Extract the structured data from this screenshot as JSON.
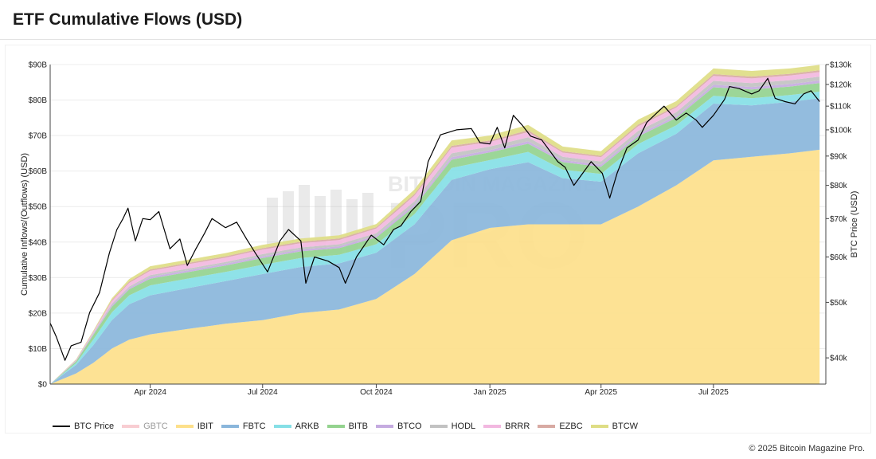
{
  "header": {
    "title": "ETF Cumulative Flows (USD)"
  },
  "footer": {
    "copyright": "© 2025 Bitcoin Magazine Pro."
  },
  "watermark": {
    "text_top": "BITCOIN MAGAZINE",
    "text_main": "PRO"
  },
  "legend": [
    {
      "id": "btc",
      "label": "BTC Price",
      "color": "#000000",
      "muted": false,
      "kind": "line"
    },
    {
      "id": "gbtc",
      "label": "GBTC",
      "color": "#f6c1c7",
      "muted": true,
      "kind": "area"
    },
    {
      "id": "ibit",
      "label": "IBIT",
      "color": "#fde08b",
      "muted": false,
      "kind": "area"
    },
    {
      "id": "fbtc",
      "label": "FBTC",
      "color": "#8ab6db",
      "muted": false,
      "kind": "area"
    },
    {
      "id": "arkb",
      "label": "ARKB",
      "color": "#86dfe6",
      "muted": false,
      "kind": "area"
    },
    {
      "id": "bitb",
      "label": "BITB",
      "color": "#94d38f",
      "muted": false,
      "kind": "area"
    },
    {
      "id": "btco",
      "label": "BTCO",
      "color": "#c5abe0",
      "muted": false,
      "kind": "area"
    },
    {
      "id": "hodl",
      "label": "HODL",
      "color": "#c2c2c2",
      "muted": false,
      "kind": "area"
    },
    {
      "id": "brrr",
      "label": "BRRR",
      "color": "#f2b8e0",
      "muted": false,
      "kind": "area"
    },
    {
      "id": "ezbc",
      "label": "EZBC",
      "color": "#d8aaa3",
      "muted": false,
      "kind": "area"
    },
    {
      "id": "btcw",
      "label": "BTCW",
      "color": "#dedd85",
      "muted": false,
      "kind": "area"
    }
  ],
  "chart_data": {
    "type": "area",
    "title": "ETF Cumulative Flows (USD)",
    "ylabel": "Cumulative Inflows/(Outflows) (USD)",
    "y2label": "BTC Price (USD)",
    "x_ticks": [
      "Apr 2024",
      "Jul 2024",
      "Oct 2024",
      "Jan 2025",
      "Apr 2025",
      "Jul 2025"
    ],
    "x_tick_dates": [
      "2024-04-01",
      "2024-07-01",
      "2024-10-01",
      "2025-01-01",
      "2025-04-01",
      "2025-07-01"
    ],
    "xlim": [
      "2024-01-11",
      "2025-09-30"
    ],
    "ylim": [
      0,
      90
    ],
    "y_ticks": [
      "$0",
      "$10B",
      "$20B",
      "$30B",
      "$40B",
      "$50B",
      "$60B",
      "$70B",
      "$80B",
      "$90B"
    ],
    "y_tick_values": [
      0,
      10,
      20,
      30,
      40,
      50,
      60,
      70,
      80,
      90
    ],
    "y2_scale": "log",
    "y2lim": [
      36000,
      130000
    ],
    "y2_ticks": [
      "$40k",
      "$50k",
      "$60k",
      "$70k",
      "$80k",
      "$90k",
      "$100k",
      "$110k",
      "$120k",
      "$130k"
    ],
    "y2_tick_values": [
      40000,
      50000,
      60000,
      70000,
      80000,
      90000,
      100000,
      110000,
      120000,
      130000
    ],
    "grid": true,
    "legend_position": "bottom",
    "stack_order": [
      "ibit",
      "fbtc",
      "arkb",
      "bitb",
      "btco",
      "hodl",
      "brrr",
      "ezbc",
      "btcw"
    ],
    "x": [
      "2024-01-11",
      "2024-02-01",
      "2024-02-15",
      "2024-03-01",
      "2024-03-15",
      "2024-04-01",
      "2024-05-01",
      "2024-06-01",
      "2024-07-01",
      "2024-08-01",
      "2024-09-01",
      "2024-10-01",
      "2024-11-01",
      "2024-12-01",
      "2025-01-01",
      "2025-02-01",
      "2025-03-01",
      "2025-04-01",
      "2025-05-01",
      "2025-06-01",
      "2025-07-01",
      "2025-08-01",
      "2025-09-01",
      "2025-09-25"
    ],
    "cumulative_total_B": [
      0,
      7,
      16,
      25,
      30,
      33,
      34,
      35.5,
      37,
      39,
      40,
      43,
      52,
      67,
      68,
      71,
      65,
      64,
      74,
      79,
      88,
      88,
      89,
      90
    ],
    "series": [
      {
        "name": "IBIT",
        "values": [
          0,
          3,
          6,
          10,
          12.5,
          14,
          15.5,
          17,
          18,
          20,
          21,
          24,
          31,
          40.5,
          44,
          45,
          45,
          45,
          50,
          56,
          63,
          64,
          65,
          66
        ]
      },
      {
        "name": "FBTC",
        "values": [
          0,
          2.4,
          5,
          8,
          10,
          11,
          11.5,
          12,
          13,
          13,
          13,
          13,
          14,
          17,
          16.5,
          17.5,
          13,
          12,
          15,
          14.5,
          16,
          14.5,
          14.5,
          14.5
        ]
      },
      {
        "name": "ARKB",
        "values": [
          0,
          0.5,
          1.6,
          2.2,
          2.5,
          2.8,
          2.7,
          2.6,
          2.6,
          2.5,
          2.4,
          2.4,
          2.9,
          3.4,
          2.6,
          2.9,
          2.4,
          2.2,
          2.6,
          2.4,
          2.2,
          2.0,
          1.9,
          1.9
        ]
      },
      {
        "name": "BITB",
        "values": [
          0,
          0.5,
          1.3,
          1.6,
          1.7,
          1.9,
          1.8,
          1.8,
          1.9,
          1.9,
          1.9,
          1.9,
          2.1,
          2.3,
          2.2,
          2.3,
          2.1,
          2.0,
          2.1,
          2.1,
          2.4,
          2.5,
          2.4,
          2.4
        ]
      },
      {
        "name": "BTCO",
        "values": [
          0,
          0.2,
          0.3,
          0.4,
          0.4,
          0.5,
          0.5,
          0.5,
          0.5,
          0.5,
          0.5,
          0.5,
          0.6,
          0.7,
          0.6,
          0.7,
          0.6,
          0.6,
          0.6,
          0.6,
          0.7,
          0.7,
          0.7,
          0.7
        ]
      },
      {
        "name": "HODL",
        "values": [
          0,
          0.1,
          0.2,
          0.4,
          0.4,
          0.5,
          0.5,
          0.5,
          0.6,
          0.6,
          0.6,
          0.7,
          0.9,
          1.1,
          1.0,
          1.1,
          0.9,
          0.9,
          1.0,
          1.0,
          1.1,
          1.1,
          1.1,
          1.1
        ]
      },
      {
        "name": "BRRR",
        "values": [
          0,
          0.1,
          0.3,
          0.8,
          1.0,
          1.2,
          1.2,
          1.2,
          1.3,
          1.2,
          1.2,
          1.3,
          1.6,
          1.6,
          1.3,
          1.5,
          1.2,
          1.2,
          1.3,
          1.3,
          1.4,
          1.3,
          1.3,
          1.3
        ]
      },
      {
        "name": "EZBC",
        "values": [
          0,
          0.1,
          0.2,
          0.3,
          0.4,
          0.4,
          0.4,
          0.4,
          0.4,
          0.4,
          0.4,
          0.4,
          0.5,
          0.5,
          0.4,
          0.5,
          0.4,
          0.4,
          0.5,
          0.4,
          0.5,
          0.5,
          0.5,
          0.5
        ]
      },
      {
        "name": "BTCW",
        "values": [
          0,
          0.1,
          0.2,
          0.5,
          0.7,
          0.9,
          0.9,
          0.9,
          0.9,
          0.9,
          0.9,
          0.9,
          1.2,
          1.5,
          1.4,
          1.5,
          1.3,
          1.3,
          1.4,
          1.4,
          1.6,
          1.6,
          1.5,
          1.5
        ]
      },
      {
        "name": "BTC Price",
        "axis": "right",
        "x": [
          "2024-01-11",
          "2024-01-16",
          "2024-01-23",
          "2024-01-28",
          "2024-02-05",
          "2024-02-12",
          "2024-02-20",
          "2024-02-28",
          "2024-03-05",
          "2024-03-10",
          "2024-03-14",
          "2024-03-20",
          "2024-03-26",
          "2024-04-01",
          "2024-04-08",
          "2024-04-17",
          "2024-04-25",
          "2024-05-01",
          "2024-05-08",
          "2024-05-15",
          "2024-05-21",
          "2024-06-01",
          "2024-06-10",
          "2024-06-18",
          "2024-06-25",
          "2024-07-05",
          "2024-07-15",
          "2024-07-22",
          "2024-08-01",
          "2024-08-05",
          "2024-08-12",
          "2024-08-23",
          "2024-09-01",
          "2024-09-06",
          "2024-09-15",
          "2024-09-27",
          "2024-10-07",
          "2024-10-15",
          "2024-10-21",
          "2024-10-29",
          "2024-11-06",
          "2024-11-12",
          "2024-11-22",
          "2024-12-05",
          "2024-12-17",
          "2024-12-24",
          "2025-01-01",
          "2025-01-07",
          "2025-01-13",
          "2025-01-20",
          "2025-01-27",
          "2025-02-03",
          "2025-02-12",
          "2025-02-25",
          "2025-03-03",
          "2025-03-10",
          "2025-03-24",
          "2025-04-02",
          "2025-04-08",
          "2025-04-14",
          "2025-04-22",
          "2025-05-01",
          "2025-05-08",
          "2025-05-22",
          "2025-06-01",
          "2025-06-09",
          "2025-06-17",
          "2025-06-22",
          "2025-07-01",
          "2025-07-10",
          "2025-07-14",
          "2025-07-22",
          "2025-08-01",
          "2025-08-07",
          "2025-08-14",
          "2025-08-20",
          "2025-08-28",
          "2025-09-05",
          "2025-09-12",
          "2025-09-18",
          "2025-09-25"
        ],
        "values": [
          46000,
          43500,
          39600,
          42000,
          42600,
          48000,
          52000,
          61000,
          67000,
          70000,
          73000,
          64000,
          70000,
          69700,
          72000,
          62000,
          64500,
          58000,
          62000,
          66000,
          70000,
          67500,
          69000,
          64500,
          61000,
          56500,
          64000,
          67000,
          64000,
          54000,
          60000,
          59000,
          57500,
          54000,
          60000,
          65500,
          63000,
          67000,
          68000,
          72000,
          75000,
          88000,
          98000,
          100000,
          100500,
          95000,
          94500,
          101000,
          93000,
          106000,
          102000,
          97500,
          96000,
          88000,
          86000,
          80000,
          88000,
          84000,
          76000,
          84000,
          93000,
          96000,
          103000,
          110000,
          104000,
          107000,
          104000,
          101000,
          106000,
          113000,
          119000,
          118000,
          115500,
          117000,
          123000,
          113500,
          112000,
          111000,
          115500,
          117000,
          112000
        ]
      }
    ]
  }
}
